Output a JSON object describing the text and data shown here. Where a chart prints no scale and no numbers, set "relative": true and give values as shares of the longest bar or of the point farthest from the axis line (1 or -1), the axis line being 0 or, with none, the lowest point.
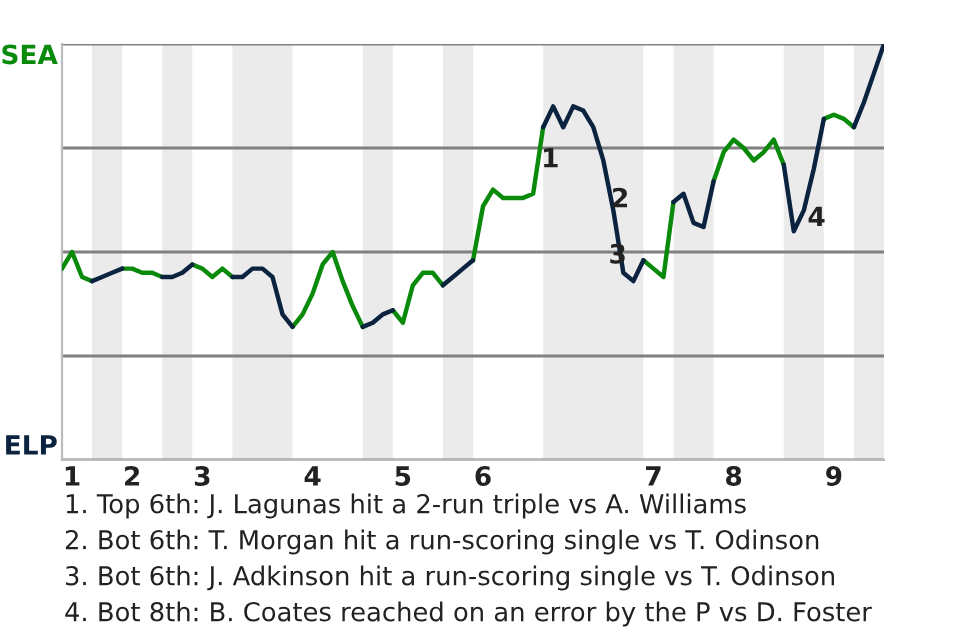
{
  "chart_data": {
    "type": "line",
    "relative": true,
    "categories": [
      null,
      "1",
      null,
      null,
      null,
      null,
      null,
      "2",
      null,
      null,
      null,
      null,
      null,
      null,
      "3",
      null,
      null,
      null,
      null,
      null,
      null,
      null,
      null,
      null,
      null,
      "4",
      null,
      null,
      null,
      null,
      null,
      null,
      null,
      null,
      "5",
      null,
      null,
      null,
      null,
      null,
      null,
      null,
      "6",
      null,
      null,
      null,
      null,
      null,
      null,
      null,
      null,
      null,
      null,
      null,
      null,
      null,
      null,
      null,
      null,
      "7",
      null,
      null,
      null,
      null,
      null,
      null,
      null,
      "8",
      null,
      null,
      null,
      null,
      null,
      null,
      null,
      null,
      null,
      "9",
      null,
      null,
      null,
      null,
      null
    ],
    "series": [
      {
        "color": "#0a8a0a",
        "values": [
          0.46,
          0.5,
          0.44,
          0.43,
          null,
          null,
          0.46,
          0.46,
          0.45,
          0.45,
          0.44,
          null,
          null,
          0.47,
          0.46,
          0.44,
          0.46,
          0.44,
          null,
          null,
          null,
          null,
          null,
          0.32,
          0.35,
          0.4,
          0.47,
          0.5,
          0.43,
          0.37,
          0.32,
          null,
          null,
          0.36,
          0.33,
          0.42,
          0.45,
          0.45,
          0.42,
          null,
          null,
          0.48,
          0.61,
          0.65,
          0.63,
          0.63,
          0.63,
          0.64,
          0.8,
          null,
          null,
          null,
          null,
          null,
          null,
          null,
          null,
          null,
          0.48,
          0.46,
          0.44,
          0.62,
          null,
          null,
          null,
          0.67,
          0.74,
          0.77,
          0.75,
          0.72,
          0.74,
          0.77,
          0.71,
          null,
          null,
          null,
          0.82,
          0.83,
          0.82,
          0.8,
          null,
          null,
          null
        ]
      },
      {
        "color": "#0c2340",
        "values": [
          null,
          null,
          null,
          0.43,
          0.44,
          0.45,
          0.46,
          null,
          null,
          null,
          0.44,
          0.44,
          0.45,
          0.47,
          null,
          null,
          null,
          0.44,
          0.44,
          0.46,
          0.46,
          0.44,
          0.35,
          0.32,
          null,
          null,
          null,
          null,
          null,
          null,
          0.32,
          0.33,
          0.35,
          0.36,
          null,
          null,
          null,
          null,
          0.42,
          0.44,
          0.46,
          0.48,
          null,
          null,
          null,
          null,
          null,
          null,
          0.8,
          0.85,
          0.8,
          0.85,
          0.84,
          0.8,
          0.72,
          0.6,
          0.45,
          0.43,
          0.48,
          null,
          null,
          0.62,
          0.64,
          0.57,
          0.56,
          0.67,
          null,
          null,
          null,
          null,
          null,
          null,
          0.71,
          0.55,
          0.6,
          0.7,
          0.82,
          null,
          null,
          0.8,
          0.86,
          0.93,
          1.0
        ]
      }
    ],
    "grid": "y",
    "annotations": [
      "SEA",
      "ELP",
      "1",
      "2",
      "3",
      "4",
      "1. Top 6th: J. Lagunas hit a 2-run triple vs A. Williams",
      "2. Bot 6th: T. Morgan hit a run-scoring single vs T. Odinson",
      "3. Bot 6th: J. Adkinson hit a run-scoring single vs T. Odinson",
      "4. Bot 8th: B. Coates reached on an error by the P vs D. Foster"
    ]
  }
}
